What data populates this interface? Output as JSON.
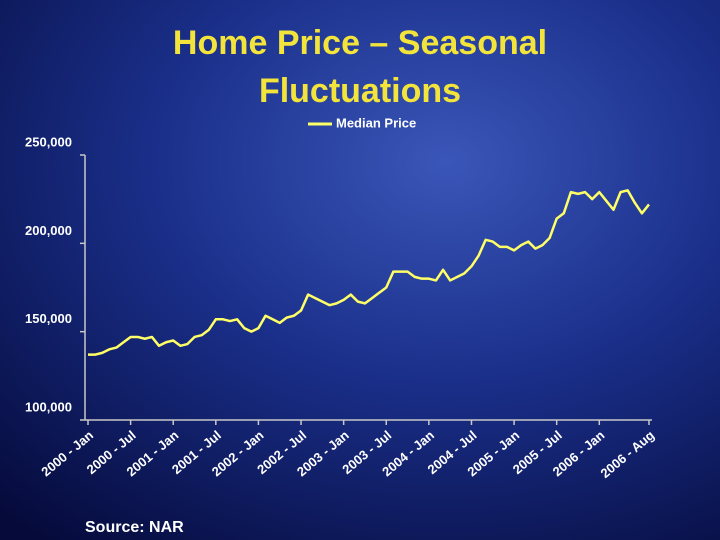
{
  "chart_data": {
    "type": "line",
    "title": [
      "Home Price – Seasonal",
      "Fluctuations"
    ],
    "source": "Source: NAR",
    "categories": [
      "2000 - Jan",
      null,
      null,
      null,
      null,
      null,
      "2000 - Jul",
      null,
      null,
      null,
      null,
      null,
      "2001 - Jan",
      null,
      null,
      null,
      null,
      null,
      "2001 - Jul",
      null,
      null,
      null,
      null,
      null,
      "2002 - Jan",
      null,
      null,
      null,
      null,
      null,
      "2002 - Jul",
      null,
      null,
      null,
      null,
      null,
      "2003 - Jan",
      null,
      null,
      null,
      null,
      null,
      "2003 - Jul",
      null,
      null,
      null,
      null,
      null,
      "2004 - Jan",
      null,
      null,
      null,
      null,
      null,
      "2004 - Jul",
      null,
      null,
      null,
      null,
      null,
      "2005 - Jan",
      null,
      null,
      null,
      null,
      null,
      "2005 - Jul",
      null,
      null,
      null,
      null,
      null,
      "2006 - Jan",
      null,
      null,
      null,
      null,
      null,
      null,
      "2006 - Aug"
    ],
    "series": [
      {
        "name": "Median Price",
        "color": "#ffff66",
        "values": [
          137000,
          137000,
          138000,
          140000,
          141000,
          144000,
          147000,
          147000,
          146000,
          147000,
          142000,
          144000,
          145000,
          142000,
          143000,
          147000,
          148000,
          151000,
          157000,
          157000,
          156000,
          157000,
          152000,
          150000,
          152000,
          159000,
          157000,
          155000,
          158000,
          159000,
          162000,
          171000,
          169000,
          167000,
          165000,
          166000,
          168000,
          171000,
          167000,
          166000,
          169000,
          172000,
          175000,
          184000,
          184000,
          184000,
          181000,
          180000,
          180000,
          179000,
          185000,
          179000,
          181000,
          183000,
          187000,
          193000,
          202000,
          201000,
          198000,
          198000,
          196000,
          199000,
          201000,
          197000,
          199000,
          203000,
          214000,
          217000,
          229000,
          228000,
          229000,
          225000,
          229000,
          224000,
          219000,
          229000,
          230000,
          223000,
          217000,
          222000
        ]
      }
    ],
    "ylim": [
      100000,
      250000
    ],
    "yticks": [
      {
        "value": 100000,
        "label": "100,000"
      },
      {
        "value": 150000,
        "label": "150,000"
      },
      {
        "value": 200000,
        "label": "200,000"
      },
      {
        "value": 250000,
        "label": "250,000"
      }
    ],
    "legend": "top"
  }
}
